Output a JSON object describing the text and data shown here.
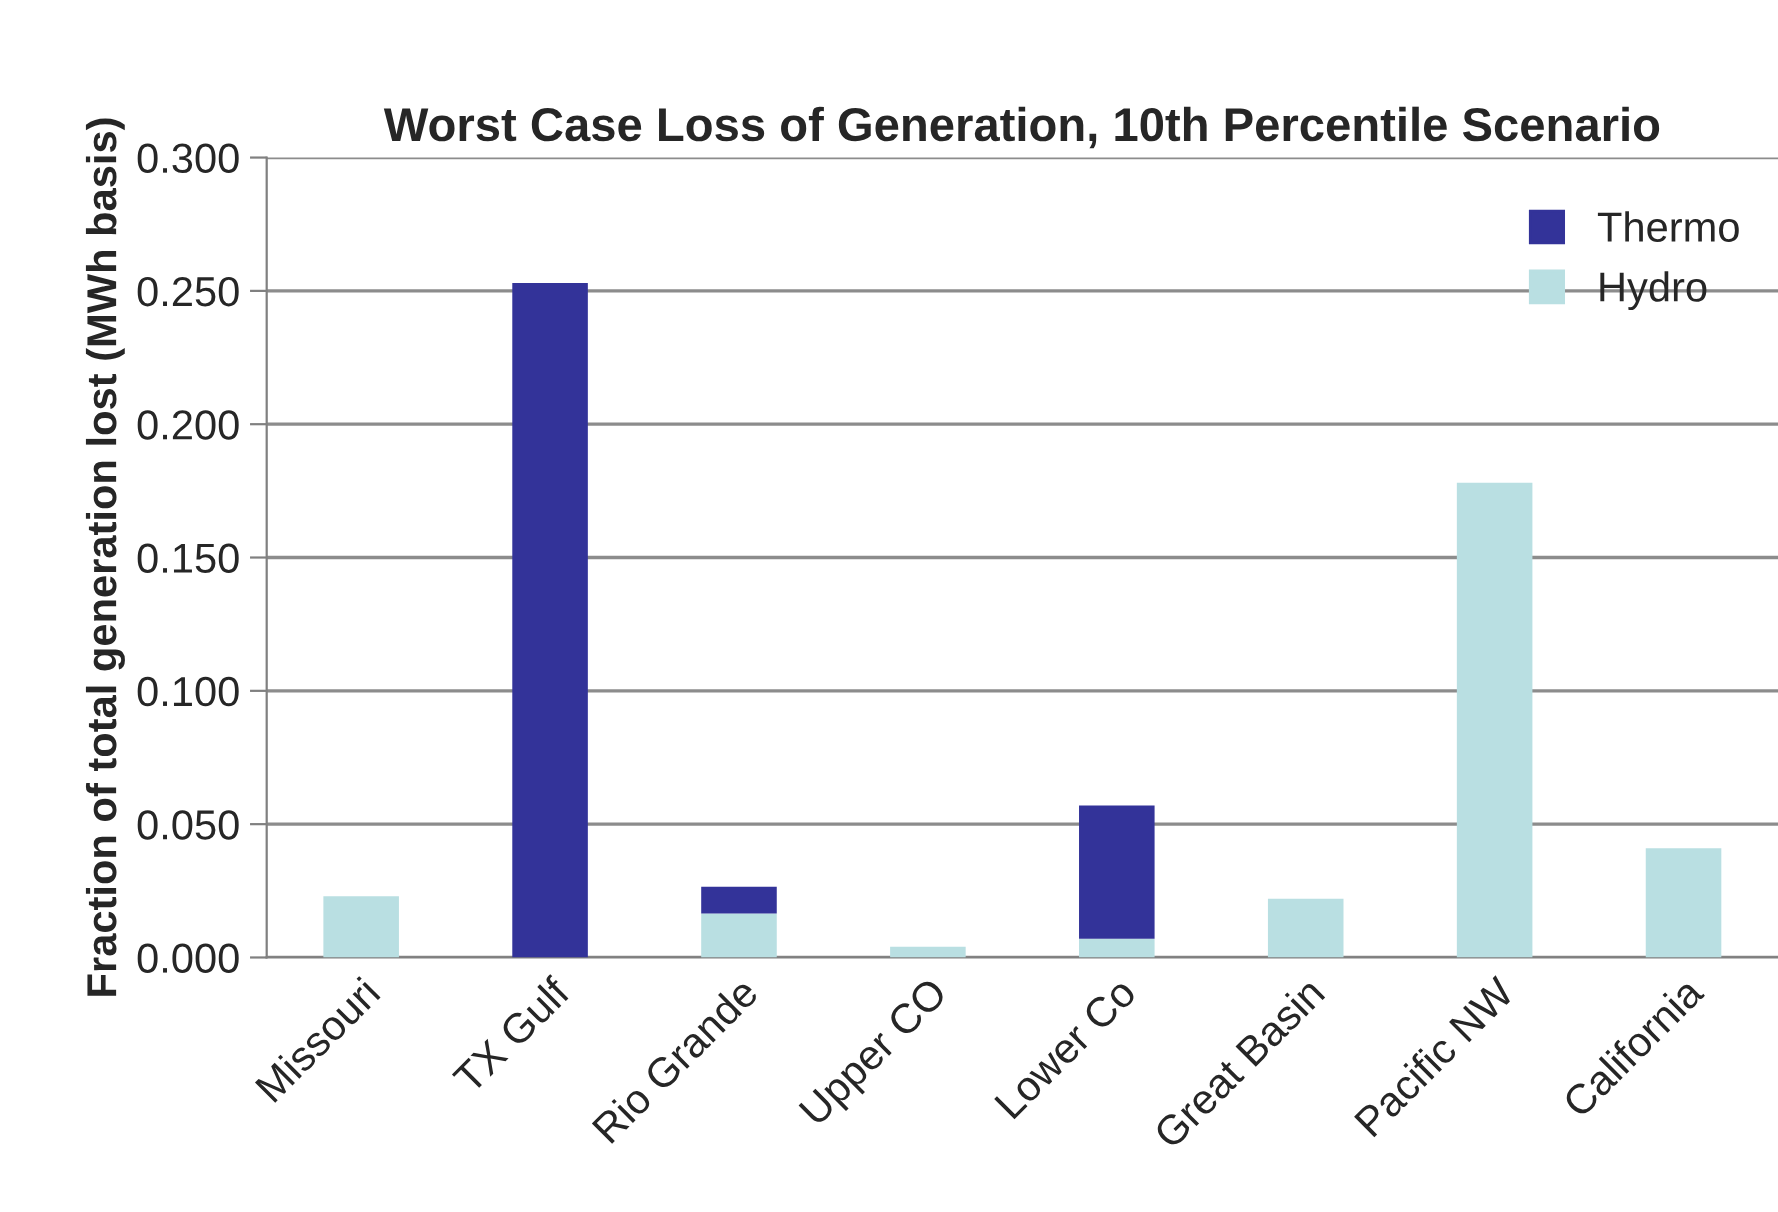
{
  "chart_data": {
    "type": "bar",
    "title": "Worst Case Loss of Generation, 10th Percentile Scenario",
    "ylabel": "Fraction of total generation lost (MWh basis)",
    "categories": [
      "Missouri",
      "TX Gulf",
      "Rio Grande",
      "Upper CO",
      "Lower Co",
      "Great Basin",
      "Pacific NW",
      "California"
    ],
    "stacked": true,
    "series": [
      {
        "name": "Hydro",
        "color": "#b9dfe2",
        "values": [
          0.023,
          0.0,
          0.0165,
          0.004,
          0.007,
          0.022,
          0.178,
          0.041
        ]
      },
      {
        "name": "Thermo",
        "color": "#333399",
        "values": [
          0.0,
          0.253,
          0.01,
          0.0,
          0.05,
          0.0,
          0.0,
          0.0
        ]
      }
    ],
    "ylim": [
      0,
      0.3
    ],
    "yticks": [
      {
        "value": 0,
        "label": "0.000"
      },
      {
        "value": 0.05,
        "label": "0.050"
      },
      {
        "value": 0.1,
        "label": "0.100"
      },
      {
        "value": 0.15,
        "label": "0.150"
      },
      {
        "value": 0.2,
        "label": "0.200"
      },
      {
        "value": 0.25,
        "label": "0.250"
      },
      {
        "value": 0.3,
        "label": "0.300"
      }
    ],
    "grid": "y",
    "legend": "top right"
  }
}
